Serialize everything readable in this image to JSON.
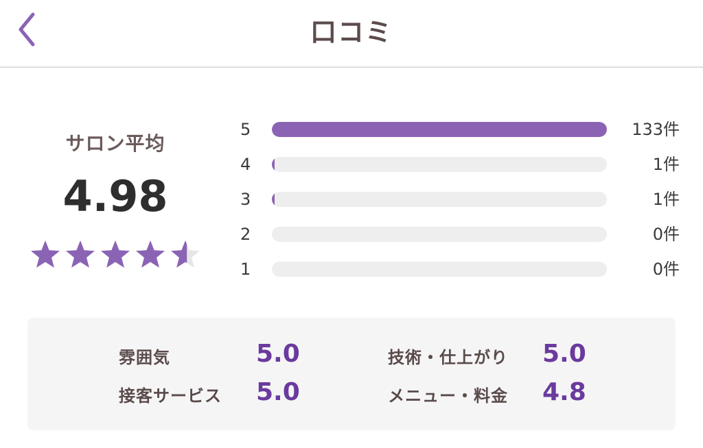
{
  "header": {
    "title": "口コミ",
    "back_icon": "chevron-left-icon",
    "accent": "#8b63b5"
  },
  "summary": {
    "label": "サロン平均",
    "average": "4.98",
    "rating": 4.98,
    "max_rating": 5
  },
  "distribution": [
    {
      "stars": "5",
      "count": "133件",
      "fraction": 1.0
    },
    {
      "stars": "4",
      "count": "1件",
      "fraction": 0.0075
    },
    {
      "stars": "3",
      "count": "1件",
      "fraction": 0.0075
    },
    {
      "stars": "2",
      "count": "0件",
      "fraction": 0
    },
    {
      "stars": "1",
      "count": "0件",
      "fraction": 0
    }
  ],
  "categories": [
    {
      "label": "雰囲気",
      "value": "5.0"
    },
    {
      "label": "技術・仕上がり",
      "value": "5.0"
    },
    {
      "label": "接客サービス",
      "value": "5.0"
    },
    {
      "label": "メニュー・料金",
      "value": "4.8"
    }
  ],
  "colors": {
    "bar": "#8b63b5",
    "star": "#8b63b5",
    "track": "#eeeeee",
    "value": "#6a3a9e"
  }
}
